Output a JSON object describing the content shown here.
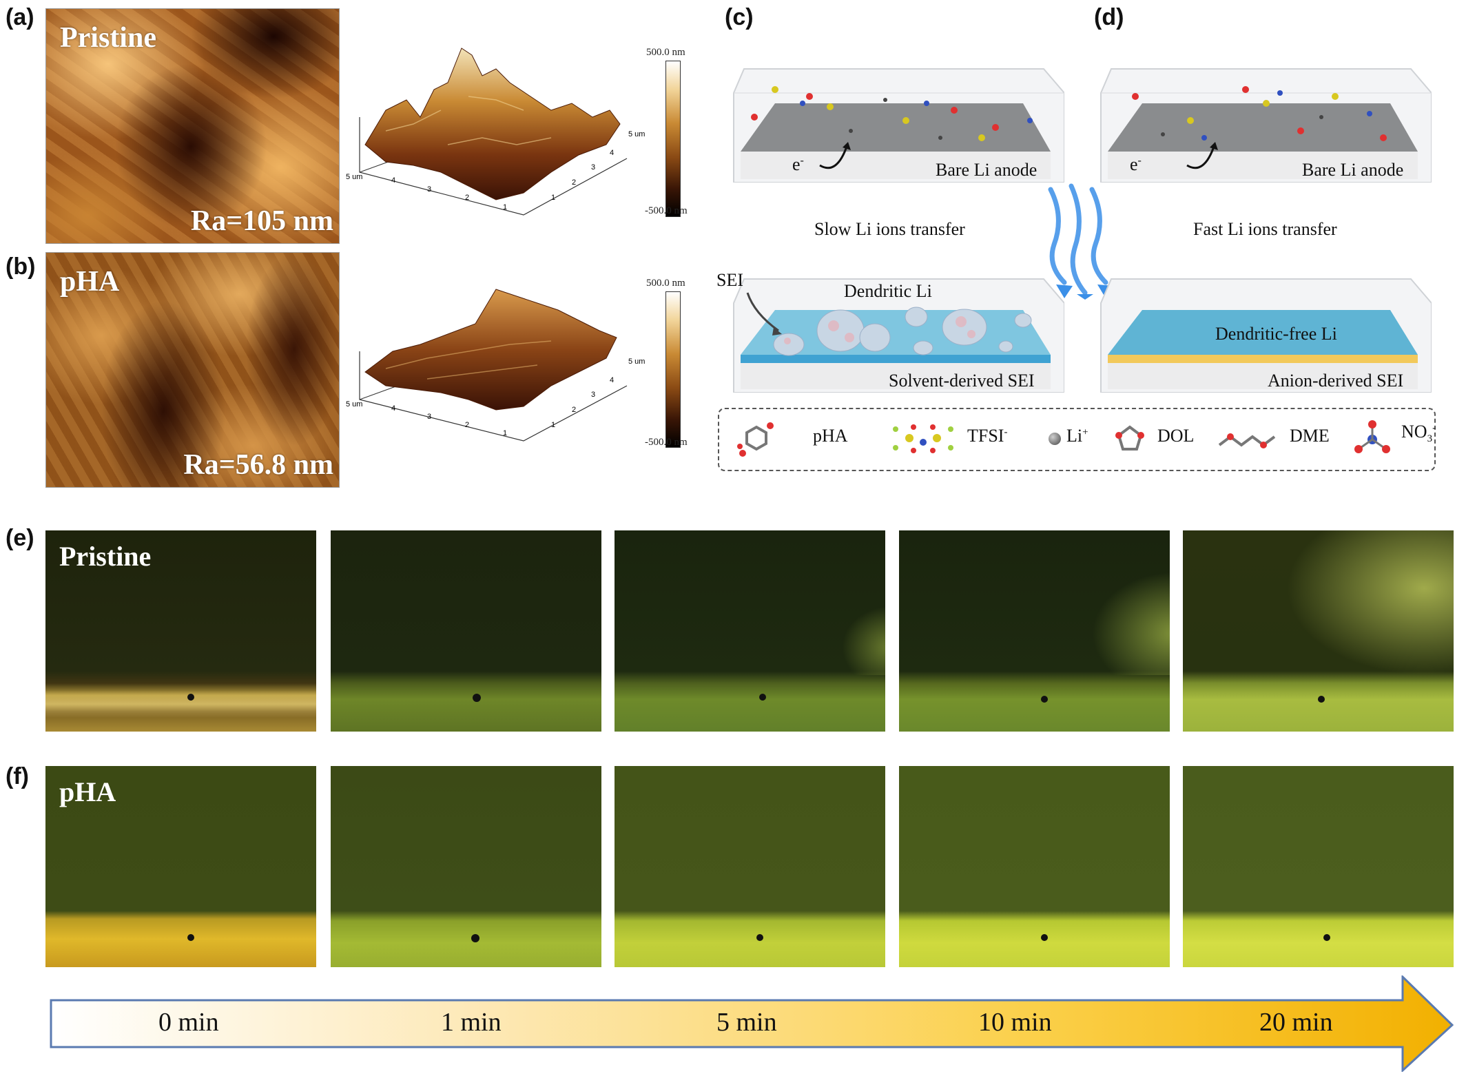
{
  "panels": {
    "a": "(a)",
    "b": "(b)",
    "c": "(c)",
    "d": "(d)",
    "e": "(e)",
    "f": "(f)"
  },
  "afm": {
    "pristine_title": "Pristine",
    "pristine_ra": "Ra=105 nm",
    "pha_title": "pHA",
    "pha_ra": "Ra=56.8 nm",
    "scale_top": "500.0 nm",
    "scale_bottom": "-500.0 nm",
    "axis_unit": "5 um",
    "ticks": [
      "1",
      "2",
      "3",
      "4"
    ]
  },
  "schematic": {
    "bare_li_anode": "Bare Li anode",
    "electron": "e",
    "electron_sup": "-",
    "slow_transfer": "Slow Li ions transfer",
    "fast_transfer": "Fast Li ions transfer",
    "sei": "SEI",
    "dendritic_li": "Dendritic Li",
    "solvent_sei": "Solvent-derived SEI",
    "dendritic_free": "Dendritic-free Li",
    "anion_sei": "Anion-derived SEI"
  },
  "legend": {
    "pha": "pHA",
    "tfsi": "TFSI",
    "tfsi_sup": "-",
    "li": "Li",
    "li_sup": "+",
    "dol": "DOL",
    "dme": "DME",
    "no3": "NO",
    "no3_sub": "3",
    "no3_sup": "-"
  },
  "micro": {
    "pristine_label": "Pristine",
    "pha_label": "pHA"
  },
  "timeline": [
    "0 min",
    "1 min",
    "5 min",
    "10 min",
    "20 min"
  ],
  "colors": {
    "afm_dark": "#2a1004",
    "afm_light": "#f4c070",
    "sei_blue": "#5fb4d4",
    "anion_gold": "#f2c95b",
    "arrow_start": "#ffffff",
    "arrow_end": "#f2b000"
  }
}
